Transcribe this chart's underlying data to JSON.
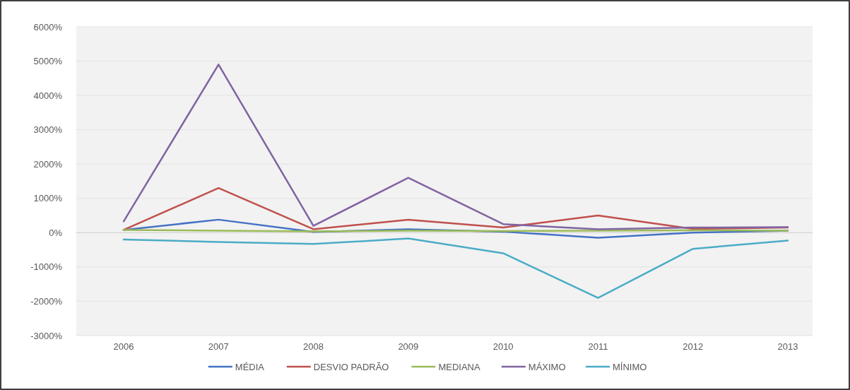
{
  "chart_data": {
    "type": "line",
    "categories": [
      "2006",
      "2007",
      "2008",
      "2009",
      "2010",
      "2011",
      "2012",
      "2013"
    ],
    "series": [
      {
        "name": "MÉDIA",
        "color": "#4472c4",
        "values": [
          80,
          380,
          20,
          100,
          30,
          -150,
          0,
          60
        ]
      },
      {
        "name": "DESVIO PADRÃO",
        "color": "#c0504d",
        "values": [
          80,
          1300,
          100,
          380,
          150,
          500,
          110,
          150
        ]
      },
      {
        "name": "MEDIANA",
        "color": "#9bbb59",
        "values": [
          80,
          60,
          40,
          60,
          50,
          60,
          70,
          60
        ]
      },
      {
        "name": "MÁXIMO",
        "color": "#8064a2",
        "values": [
          330,
          4900,
          200,
          1600,
          250,
          100,
          150,
          160
        ]
      },
      {
        "name": "MÍNIMO",
        "color": "#4bacc6",
        "values": [
          -200,
          -270,
          -330,
          -170,
          -600,
          -1900,
          -470,
          -230
        ]
      }
    ],
    "ylim": [
      -3000,
      6000
    ],
    "yticks": [
      {
        "value": -3000,
        "label": "-3000%"
      },
      {
        "value": -2000,
        "label": "-2000%"
      },
      {
        "value": -1000,
        "label": "-1000%"
      },
      {
        "value": 0,
        "label": "0%"
      },
      {
        "value": 1000,
        "label": "1000%"
      },
      {
        "value": 2000,
        "label": "2000%"
      },
      {
        "value": 3000,
        "label": "3000%"
      },
      {
        "value": 4000,
        "label": "4000%"
      },
      {
        "value": 5000,
        "label": "5000%"
      },
      {
        "value": 6000,
        "label": "6000%"
      }
    ],
    "grid": "y",
    "legend": "bottom",
    "marker": "none",
    "line_style": "solid"
  }
}
